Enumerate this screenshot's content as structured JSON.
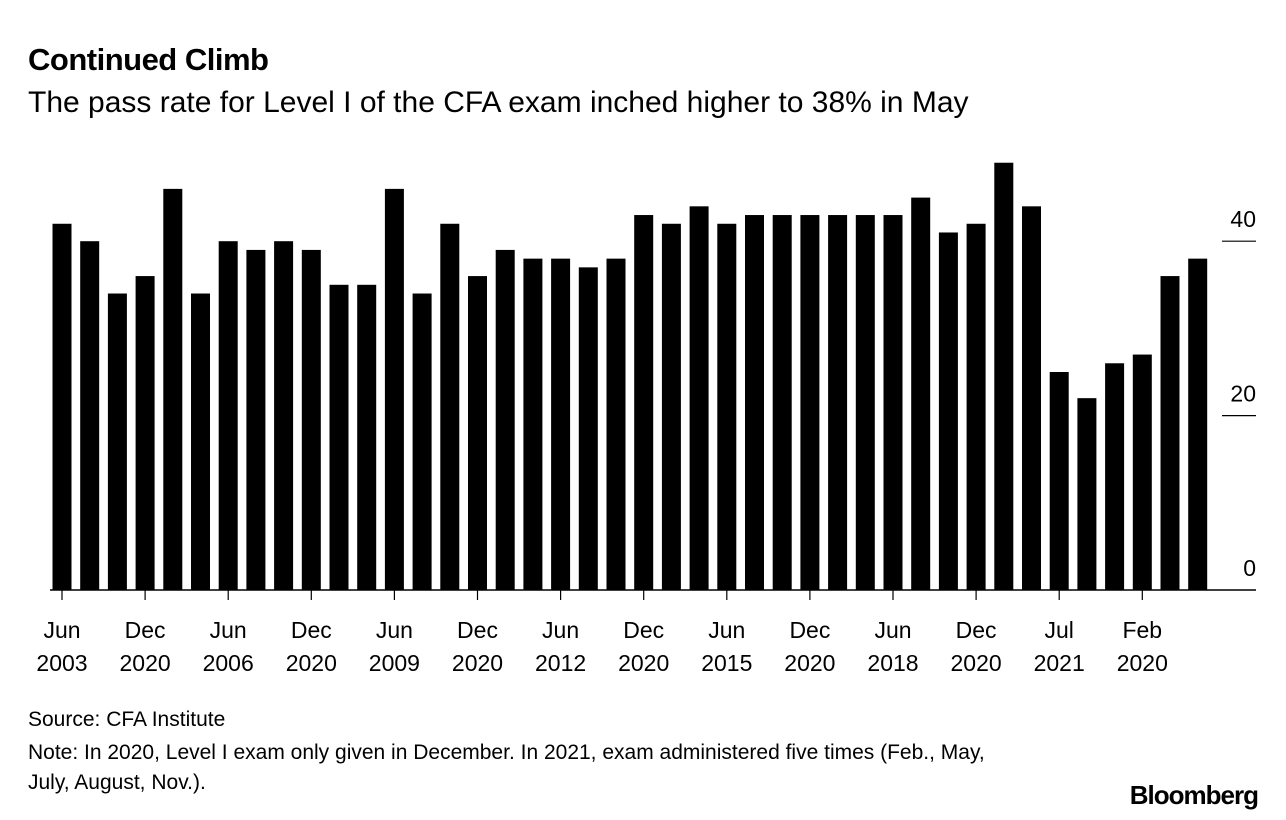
{
  "chart_data": {
    "type": "bar",
    "title": "Continued Climb",
    "subtitle": "The pass rate for Level I of the CFA exam inched higher to 38% in May",
    "categories": [
      "Jun\n2003",
      null,
      null,
      "Dec\n2020",
      null,
      null,
      "Jun\n2006",
      null,
      null,
      "Dec\n2020",
      null,
      null,
      "Jun\n2009",
      null,
      null,
      "Dec\n2020",
      null,
      null,
      "Jun\n2012",
      null,
      null,
      "Dec\n2020",
      null,
      null,
      "Jun\n2015",
      null,
      null,
      "Dec\n2020",
      null,
      null,
      "Jun\n2018",
      null,
      null,
      "Dec\n2020",
      null,
      null,
      "Jul\n2021",
      null,
      null,
      "Feb\n2020",
      null,
      null
    ],
    "values": [
      42,
      40,
      34,
      36,
      46,
      34,
      40,
      39,
      40,
      39,
      35,
      35,
      46,
      34,
      42,
      36,
      39,
      38,
      38,
      37,
      38,
      43,
      42,
      44,
      42,
      43,
      43,
      43,
      43,
      43,
      43,
      45,
      41,
      42,
      49,
      44,
      25,
      22,
      26,
      27,
      36,
      38
    ],
    "color": "#000000",
    "ylim": [
      0,
      50
    ],
    "yticks": [
      0,
      20,
      40
    ],
    "source": "Source: CFA Institute",
    "note": "Note: In 2020, Level I exam only given in December. In 2021, exam administered five times (Feb., May, July, August, Nov.).",
    "brand": "Bloomberg"
  }
}
